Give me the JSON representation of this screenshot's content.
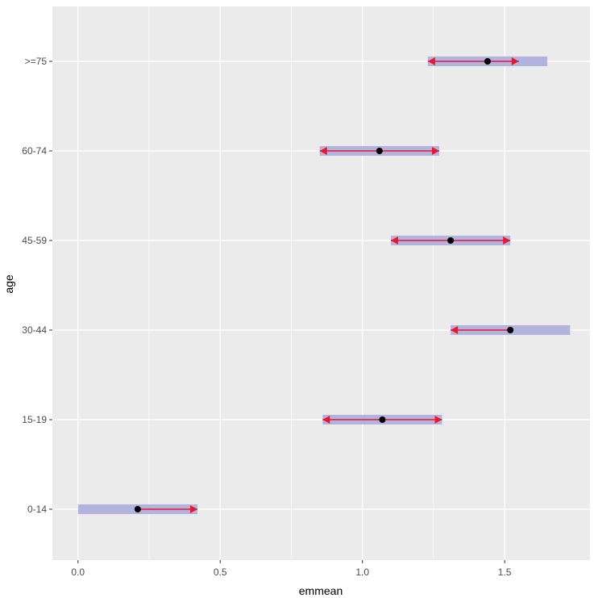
{
  "chart_data": {
    "type": "interval",
    "xlabel": "emmean",
    "ylabel": "age",
    "xlim": [
      -0.09,
      1.8
    ],
    "x_ticks": [
      "0.0",
      "0.5",
      "1.0",
      "1.5"
    ],
    "x_tick_values": [
      0.0,
      0.5,
      1.0,
      1.5
    ],
    "categories": [
      "0-14",
      "15-19",
      "30-44",
      "45-59",
      "60-74",
      ">=75"
    ],
    "emmean": [
      0.21,
      1.07,
      1.52,
      1.31,
      1.06,
      1.44
    ],
    "ci_lower": [
      0.0,
      0.86,
      1.31,
      1.1,
      0.85,
      1.23
    ],
    "ci_upper": [
      0.42,
      1.28,
      1.73,
      1.52,
      1.27,
      1.65
    ],
    "comparison_lower": [
      0.21,
      0.86,
      1.31,
      1.1,
      0.85,
      1.23
    ],
    "comparison_upper": [
      0.42,
      1.28,
      1.52,
      1.52,
      1.27,
      1.55
    ],
    "grid": true,
    "colors": {
      "panel": "#ebebeb",
      "grid": "#ffffff",
      "ci_bar": "#b3b3e0",
      "arrow": "#e8192c",
      "point": "#000000"
    }
  }
}
